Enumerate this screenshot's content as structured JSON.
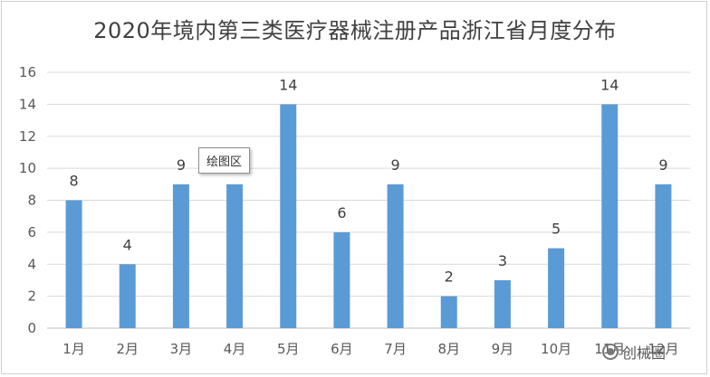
{
  "chart_data": {
    "type": "bar",
    "title": "2020年境内第三类医疗器械注册产品浙江省月度分布",
    "categories": [
      "1月",
      "2月",
      "3月",
      "4月",
      "5月",
      "6月",
      "7月",
      "8月",
      "9月",
      "10月",
      "11月",
      "12月"
    ],
    "values": [
      8,
      4,
      9,
      9,
      14,
      6,
      9,
      2,
      3,
      5,
      14,
      9
    ],
    "value_labels": [
      "8",
      "4",
      "9",
      "",
      "14",
      "6",
      "9",
      "2",
      "3",
      "5",
      "14",
      "9"
    ],
    "ylim": [
      0,
      16
    ],
    "yticks": [
      0,
      2,
      4,
      6,
      8,
      10,
      12,
      14,
      16
    ],
    "xlabel": "",
    "ylabel": "",
    "grid": true,
    "bar_color": "#5b9bd5",
    "grid_color": "#d9d9d9"
  },
  "tooltip": {
    "text": "绘图区"
  },
  "watermark": {
    "text": "创械圈",
    "icon": "wechat-logo-icon"
  }
}
